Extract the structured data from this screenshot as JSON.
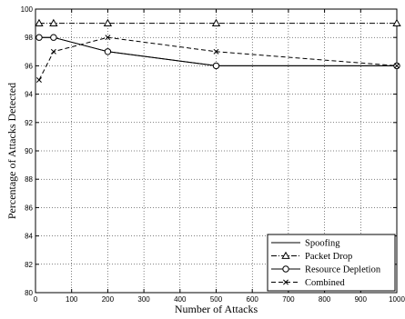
{
  "chart_data": {
    "type": "line",
    "title": "",
    "xlabel": "Number of Attacks",
    "ylabel": "Percentage of Attacks Detected",
    "xlim": [
      0,
      1000
    ],
    "ylim": [
      80,
      100
    ],
    "xticks": [
      0,
      100,
      200,
      300,
      400,
      500,
      600,
      700,
      800,
      900,
      1000
    ],
    "yticks": [
      80,
      82,
      84,
      86,
      88,
      90,
      92,
      94,
      96,
      98,
      100
    ],
    "grid": true,
    "legend_position": "bottom-right",
    "series": [
      {
        "name": "Spoofing",
        "line": "solid",
        "marker": "none",
        "x": [
          10,
          50,
          200,
          500,
          1000
        ],
        "y": [
          98,
          98,
          97,
          96,
          96
        ]
      },
      {
        "name": "Packet Drop",
        "line": "dashdot",
        "marker": "triangle",
        "x": [
          10,
          50,
          200,
          500,
          1000
        ],
        "y": [
          99,
          99,
          99,
          99,
          99
        ]
      },
      {
        "name": "Resource Depletion",
        "line": "solid",
        "marker": "circle",
        "x": [
          10,
          50,
          200,
          500,
          1000
        ],
        "y": [
          98,
          98,
          97,
          96,
          96
        ]
      },
      {
        "name": "Combined",
        "line": "dashed",
        "marker": "x",
        "x": [
          10,
          50,
          200,
          500,
          1000
        ],
        "y": [
          95,
          97,
          98,
          97,
          96
        ]
      }
    ]
  }
}
